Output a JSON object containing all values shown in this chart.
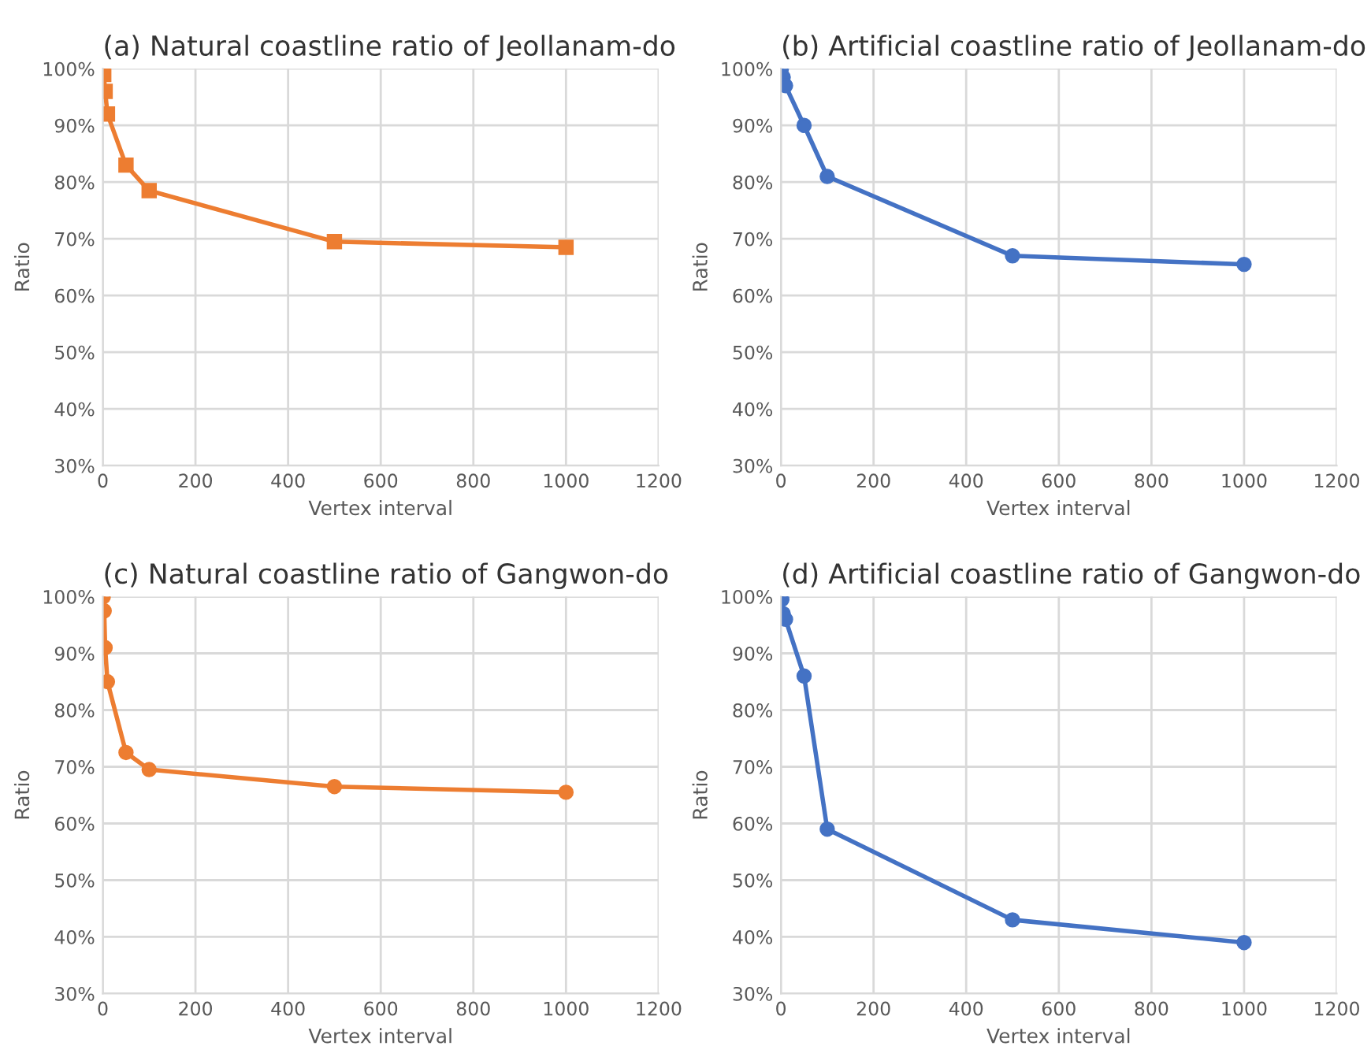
{
  "chart_data": [
    {
      "type": "line",
      "title": "(a) Natural coastline ratio of Jeollanam-do",
      "xlabel": "Vertex interval",
      "ylabel": "Ratio",
      "marker": "square",
      "grid": true,
      "xlim": [
        0,
        1200
      ],
      "xticks": [
        0,
        200,
        400,
        600,
        800,
        1000,
        1200
      ],
      "ylim": [
        30,
        100
      ],
      "yticks": [
        {
          "value": 30,
          "label": "30%"
        },
        {
          "value": 40,
          "label": "40%"
        },
        {
          "value": 50,
          "label": "50%"
        },
        {
          "value": 60,
          "label": "60%"
        },
        {
          "value": 70,
          "label": "70%"
        },
        {
          "value": 80,
          "label": "80%"
        },
        {
          "value": 90,
          "label": "90%"
        },
        {
          "value": 100,
          "label": "100%"
        }
      ],
      "series": [
        {
          "color": "#ed7d31",
          "x": [
            1,
            2,
            5,
            10,
            50,
            100,
            500,
            1000
          ],
          "values": [
            100,
            99,
            96,
            92,
            83,
            78.5,
            69.5,
            68.5
          ]
        }
      ]
    },
    {
      "type": "line",
      "title": "(b) Artificial coastline ratio of Jeollanam-do",
      "xlabel": "Vertex interval",
      "ylabel": "Ratio",
      "marker": "circle",
      "grid": true,
      "xlim": [
        0,
        1200
      ],
      "xticks": [
        0,
        200,
        400,
        600,
        800,
        1000,
        1200
      ],
      "ylim": [
        30,
        100
      ],
      "yticks": [
        {
          "value": 30,
          "label": "30%"
        },
        {
          "value": 40,
          "label": "40%"
        },
        {
          "value": 50,
          "label": "50%"
        },
        {
          "value": 60,
          "label": "60%"
        },
        {
          "value": 70,
          "label": "70%"
        },
        {
          "value": 80,
          "label": "80%"
        },
        {
          "value": 90,
          "label": "90%"
        },
        {
          "value": 100,
          "label": "100%"
        }
      ],
      "series": [
        {
          "color": "#4472c4",
          "x": [
            1,
            2,
            5,
            10,
            50,
            100,
            500,
            1000
          ],
          "values": [
            100,
            null,
            98.5,
            97,
            90,
            81,
            67,
            65.5
          ]
        }
      ]
    },
    {
      "type": "line",
      "title": "(c) Natural coastline ratio of Gangwon-do",
      "xlabel": "Vertex interval",
      "ylabel": "Ratio",
      "marker": "circle",
      "grid": true,
      "xlim": [
        0,
        1200
      ],
      "xticks": [
        0,
        200,
        400,
        600,
        800,
        1000,
        1200
      ],
      "ylim": [
        30,
        100
      ],
      "yticks": [
        {
          "value": 30,
          "label": "30%"
        },
        {
          "value": 40,
          "label": "40%"
        },
        {
          "value": 50,
          "label": "50%"
        },
        {
          "value": 60,
          "label": "60%"
        },
        {
          "value": 70,
          "label": "70%"
        },
        {
          "value": 80,
          "label": "80%"
        },
        {
          "value": 90,
          "label": "90%"
        },
        {
          "value": 100,
          "label": "100%"
        }
      ],
      "series": [
        {
          "color": "#ed7d31",
          "x": [
            1,
            2,
            3,
            5,
            10,
            50,
            100,
            500,
            1000
          ],
          "values": [
            100,
            null,
            97.5,
            91,
            85,
            72.5,
            69.5,
            66.5,
            65.5
          ]
        }
      ]
    },
    {
      "type": "line",
      "title": "(d) Artificial coastline ratio of Gangwon-do",
      "xlabel": "Vertex interval",
      "ylabel": "Ratio",
      "marker": "circle",
      "grid": true,
      "xlim": [
        0,
        1200
      ],
      "xticks": [
        0,
        200,
        400,
        600,
        800,
        1000,
        1200
      ],
      "ylim": [
        30,
        100
      ],
      "yticks": [
        {
          "value": 30,
          "label": "30%"
        },
        {
          "value": 40,
          "label": "40%"
        },
        {
          "value": 50,
          "label": "50%"
        },
        {
          "value": 60,
          "label": "60%"
        },
        {
          "value": 70,
          "label": "70%"
        },
        {
          "value": 80,
          "label": "80%"
        },
        {
          "value": 90,
          "label": "90%"
        },
        {
          "value": 100,
          "label": "100%"
        }
      ],
      "series": [
        {
          "color": "#4472c4",
          "x": [
            1,
            2,
            5,
            10,
            50,
            100,
            500,
            1000
          ],
          "values": [
            100,
            99.5,
            97,
            96,
            86,
            59,
            43,
            39
          ]
        }
      ]
    }
  ]
}
